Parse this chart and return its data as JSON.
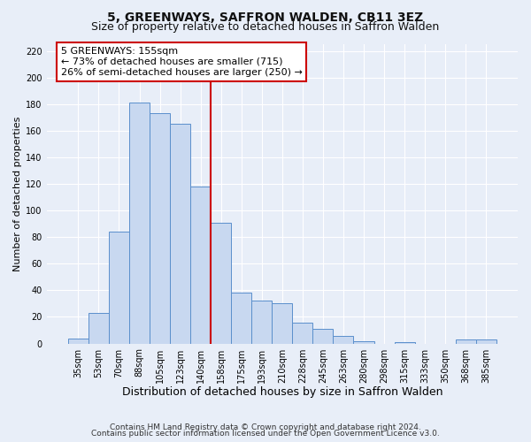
{
  "title": "5, GREENWAYS, SAFFRON WALDEN, CB11 3EZ",
  "subtitle": "Size of property relative to detached houses in Saffron Walden",
  "xlabel": "Distribution of detached houses by size in Saffron Walden",
  "ylabel": "Number of detached properties",
  "categories": [
    "35sqm",
    "53sqm",
    "70sqm",
    "88sqm",
    "105sqm",
    "123sqm",
    "140sqm",
    "158sqm",
    "175sqm",
    "193sqm",
    "210sqm",
    "228sqm",
    "245sqm",
    "263sqm",
    "280sqm",
    "298sqm",
    "315sqm",
    "333sqm",
    "350sqm",
    "368sqm",
    "385sqm"
  ],
  "values": [
    4,
    23,
    84,
    181,
    173,
    165,
    118,
    91,
    38,
    32,
    30,
    16,
    11,
    6,
    2,
    0,
    1,
    0,
    0,
    3,
    3
  ],
  "bar_color": "#c8d8f0",
  "bar_edge_color": "#5b8fcc",
  "highlight_line_color": "#cc0000",
  "annotation_text": "5 GREENWAYS: 155sqm\n← 73% of detached houses are smaller (715)\n26% of semi-detached houses are larger (250) →",
  "annotation_box_color": "#ffffff",
  "annotation_box_edge_color": "#cc0000",
  "ylim": [
    0,
    225
  ],
  "yticks": [
    0,
    20,
    40,
    60,
    80,
    100,
    120,
    140,
    160,
    180,
    200,
    220
  ],
  "footer_line1": "Contains HM Land Registry data © Crown copyright and database right 2024.",
  "footer_line2": "Contains public sector information licensed under the Open Government Licence v3.0.",
  "background_color": "#e8eef8",
  "plot_background_color": "#e8eef8",
  "grid_color": "#ffffff",
  "title_fontsize": 10,
  "subtitle_fontsize": 9,
  "xlabel_fontsize": 9,
  "ylabel_fontsize": 8,
  "tick_fontsize": 7,
  "footer_fontsize": 6.5,
  "annotation_fontsize": 8
}
